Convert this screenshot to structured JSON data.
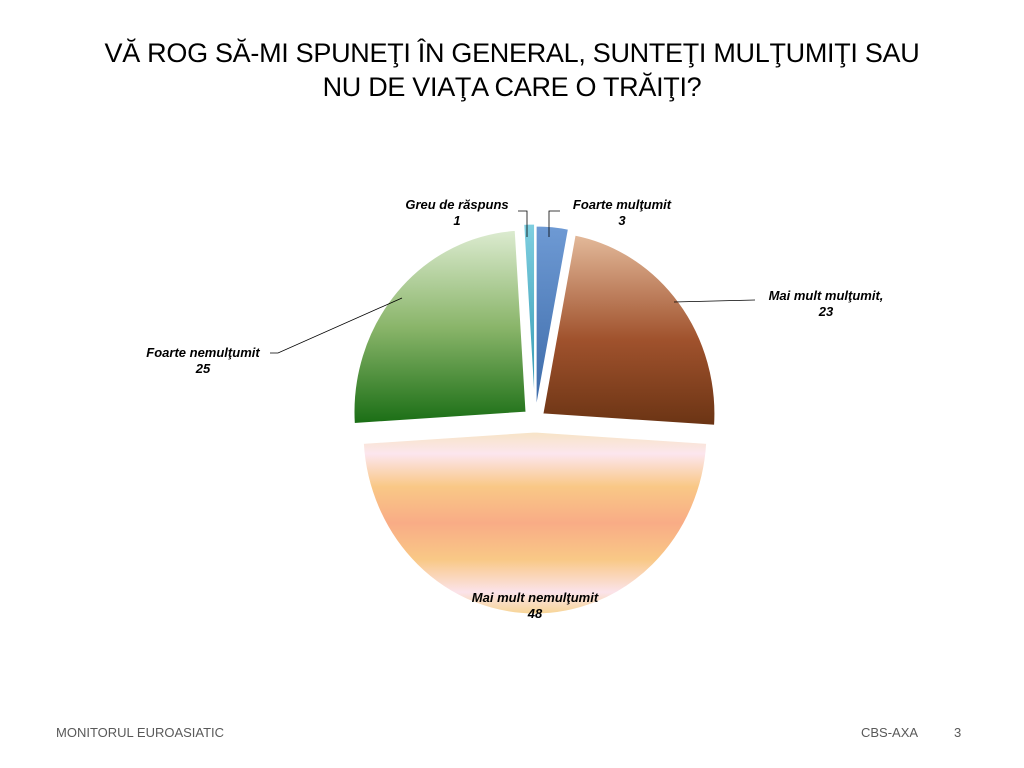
{
  "slide": {
    "title_line1": "VĂ ROG SĂ-MI SPUNEŢI ÎN GENERAL, SUNTEŢI MULŢUMIŢI SAU",
    "title_line2": "NU DE VIAŢA CARE O TRĂIŢI?"
  },
  "footer": {
    "left": "MONITORUL  EUROASIATIC",
    "org": "CBS-AXA",
    "page": "3"
  },
  "chart_data": {
    "type": "pie",
    "title": "",
    "exploded": true,
    "data_labels": "category-and-value",
    "categories": [
      "Foarte mulţumit",
      "Mai mult mulţumit,",
      "Mai mult nemulţumit",
      "Foarte nemulţumit",
      "Greu de răspuns"
    ],
    "values": [
      3,
      23,
      48,
      25,
      1
    ],
    "colors": [
      "#4f81bd",
      "#a0522d",
      "#f9c090",
      "#3a8a2e",
      "#4bacc6"
    ]
  }
}
